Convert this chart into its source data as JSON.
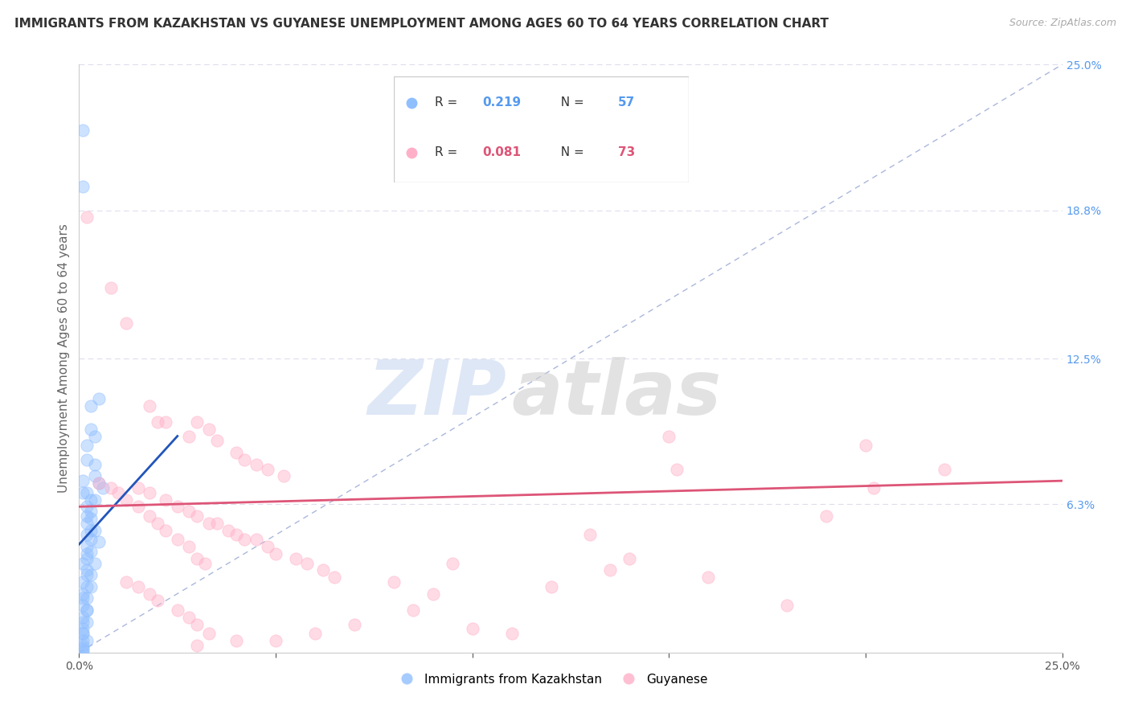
{
  "title": "IMMIGRANTS FROM KAZAKHSTAN VS GUYANESE UNEMPLOYMENT AMONG AGES 60 TO 64 YEARS CORRELATION CHART",
  "source": "Source: ZipAtlas.com",
  "ylabel": "Unemployment Among Ages 60 to 64 years",
  "xlim": [
    0,
    0.25
  ],
  "ylim": [
    0,
    0.25
  ],
  "ytick_vals_right": [
    0.063,
    0.125,
    0.188,
    0.25
  ],
  "watermark_zip": "ZIP",
  "watermark_atlas": "atlas",
  "blue_scatter": [
    [
      0.001,
      0.222
    ],
    [
      0.001,
      0.198
    ],
    [
      0.003,
      0.105
    ],
    [
      0.003,
      0.095
    ],
    [
      0.005,
      0.108
    ],
    [
      0.004,
      0.092
    ],
    [
      0.002,
      0.088
    ],
    [
      0.002,
      0.082
    ],
    [
      0.004,
      0.08
    ],
    [
      0.004,
      0.075
    ],
    [
      0.001,
      0.073
    ],
    [
      0.001,
      0.068
    ],
    [
      0.002,
      0.068
    ],
    [
      0.003,
      0.065
    ],
    [
      0.002,
      0.062
    ],
    [
      0.003,
      0.06
    ],
    [
      0.002,
      0.058
    ],
    [
      0.002,
      0.055
    ],
    [
      0.003,
      0.052
    ],
    [
      0.002,
      0.05
    ],
    [
      0.003,
      0.048
    ],
    [
      0.002,
      0.045
    ],
    [
      0.002,
      0.042
    ],
    [
      0.002,
      0.04
    ],
    [
      0.001,
      0.038
    ],
    [
      0.002,
      0.035
    ],
    [
      0.002,
      0.033
    ],
    [
      0.001,
      0.03
    ],
    [
      0.002,
      0.028
    ],
    [
      0.001,
      0.025
    ],
    [
      0.001,
      0.023
    ],
    [
      0.001,
      0.02
    ],
    [
      0.002,
      0.018
    ],
    [
      0.001,
      0.015
    ],
    [
      0.001,
      0.013
    ],
    [
      0.001,
      0.01
    ],
    [
      0.001,
      0.008
    ],
    [
      0.001,
      0.005
    ],
    [
      0.004,
      0.065
    ],
    [
      0.005,
      0.072
    ],
    [
      0.006,
      0.07
    ],
    [
      0.003,
      0.057
    ],
    [
      0.004,
      0.052
    ],
    [
      0.005,
      0.047
    ],
    [
      0.003,
      0.043
    ],
    [
      0.004,
      0.038
    ],
    [
      0.003,
      0.033
    ],
    [
      0.003,
      0.028
    ],
    [
      0.002,
      0.023
    ],
    [
      0.002,
      0.018
    ],
    [
      0.002,
      0.013
    ],
    [
      0.001,
      0.008
    ],
    [
      0.002,
      0.005
    ],
    [
      0.001,
      0.003
    ],
    [
      0.001,
      0.002
    ],
    [
      0.001,
      0.001
    ],
    [
      0.001,
      0.0
    ]
  ],
  "pink_scatter": [
    [
      0.002,
      0.185
    ],
    [
      0.008,
      0.155
    ],
    [
      0.012,
      0.14
    ],
    [
      0.018,
      0.105
    ],
    [
      0.02,
      0.098
    ],
    [
      0.022,
      0.098
    ],
    [
      0.028,
      0.092
    ],
    [
      0.03,
      0.098
    ],
    [
      0.033,
      0.095
    ],
    [
      0.035,
      0.09
    ],
    [
      0.04,
      0.085
    ],
    [
      0.042,
      0.082
    ],
    [
      0.045,
      0.08
    ],
    [
      0.048,
      0.078
    ],
    [
      0.052,
      0.075
    ],
    [
      0.015,
      0.07
    ],
    [
      0.018,
      0.068
    ],
    [
      0.022,
      0.065
    ],
    [
      0.025,
      0.062
    ],
    [
      0.028,
      0.06
    ],
    [
      0.03,
      0.058
    ],
    [
      0.033,
      0.055
    ],
    [
      0.035,
      0.055
    ],
    [
      0.038,
      0.052
    ],
    [
      0.04,
      0.05
    ],
    [
      0.042,
      0.048
    ],
    [
      0.045,
      0.048
    ],
    [
      0.048,
      0.045
    ],
    [
      0.05,
      0.042
    ],
    [
      0.055,
      0.04
    ],
    [
      0.058,
      0.038
    ],
    [
      0.062,
      0.035
    ],
    [
      0.065,
      0.032
    ],
    [
      0.005,
      0.072
    ],
    [
      0.008,
      0.07
    ],
    [
      0.01,
      0.068
    ],
    [
      0.012,
      0.065
    ],
    [
      0.015,
      0.062
    ],
    [
      0.018,
      0.058
    ],
    [
      0.02,
      0.055
    ],
    [
      0.022,
      0.052
    ],
    [
      0.025,
      0.048
    ],
    [
      0.028,
      0.045
    ],
    [
      0.03,
      0.04
    ],
    [
      0.032,
      0.038
    ],
    [
      0.012,
      0.03
    ],
    [
      0.015,
      0.028
    ],
    [
      0.018,
      0.025
    ],
    [
      0.02,
      0.022
    ],
    [
      0.025,
      0.018
    ],
    [
      0.028,
      0.015
    ],
    [
      0.03,
      0.012
    ],
    [
      0.033,
      0.008
    ],
    [
      0.15,
      0.092
    ],
    [
      0.152,
      0.078
    ],
    [
      0.2,
      0.088
    ],
    [
      0.202,
      0.07
    ],
    [
      0.22,
      0.078
    ],
    [
      0.19,
      0.058
    ],
    [
      0.13,
      0.05
    ],
    [
      0.14,
      0.04
    ],
    [
      0.16,
      0.032
    ],
    [
      0.12,
      0.028
    ],
    [
      0.18,
      0.02
    ],
    [
      0.09,
      0.025
    ],
    [
      0.1,
      0.01
    ],
    [
      0.11,
      0.008
    ],
    [
      0.08,
      0.03
    ],
    [
      0.085,
      0.018
    ],
    [
      0.095,
      0.038
    ],
    [
      0.07,
      0.012
    ],
    [
      0.06,
      0.008
    ],
    [
      0.05,
      0.005
    ],
    [
      0.04,
      0.005
    ],
    [
      0.03,
      0.003
    ],
    [
      0.135,
      0.035
    ]
  ],
  "blue_trend_x": [
    0.0,
    0.025
  ],
  "blue_trend_y": [
    0.046,
    0.092
  ],
  "pink_trend_x": [
    0.0,
    0.25
  ],
  "pink_trend_y": [
    0.062,
    0.073
  ],
  "ref_line": [
    [
      0.0,
      0.0
    ],
    [
      0.25,
      0.25
    ]
  ],
  "scatter_size": 120,
  "scatter_alpha": 0.45,
  "blue_color": "#90bfff",
  "pink_color": "#ffb0c8",
  "trend_blue_color": "#2255bb",
  "trend_pink_color": "#dd5577",
  "ref_line_color": "#8899cc",
  "grid_color": "#ddddee",
  "title_fontsize": 11,
  "axis_label_fontsize": 11,
  "tick_fontsize": 10,
  "right_tick_color": "#5599ee",
  "legend_R_color_blue": "#5599ee",
  "legend_N_color_blue": "#5599ee",
  "legend_R_color_pink": "#dd5577",
  "legend_N_color_pink": "#dd5577"
}
